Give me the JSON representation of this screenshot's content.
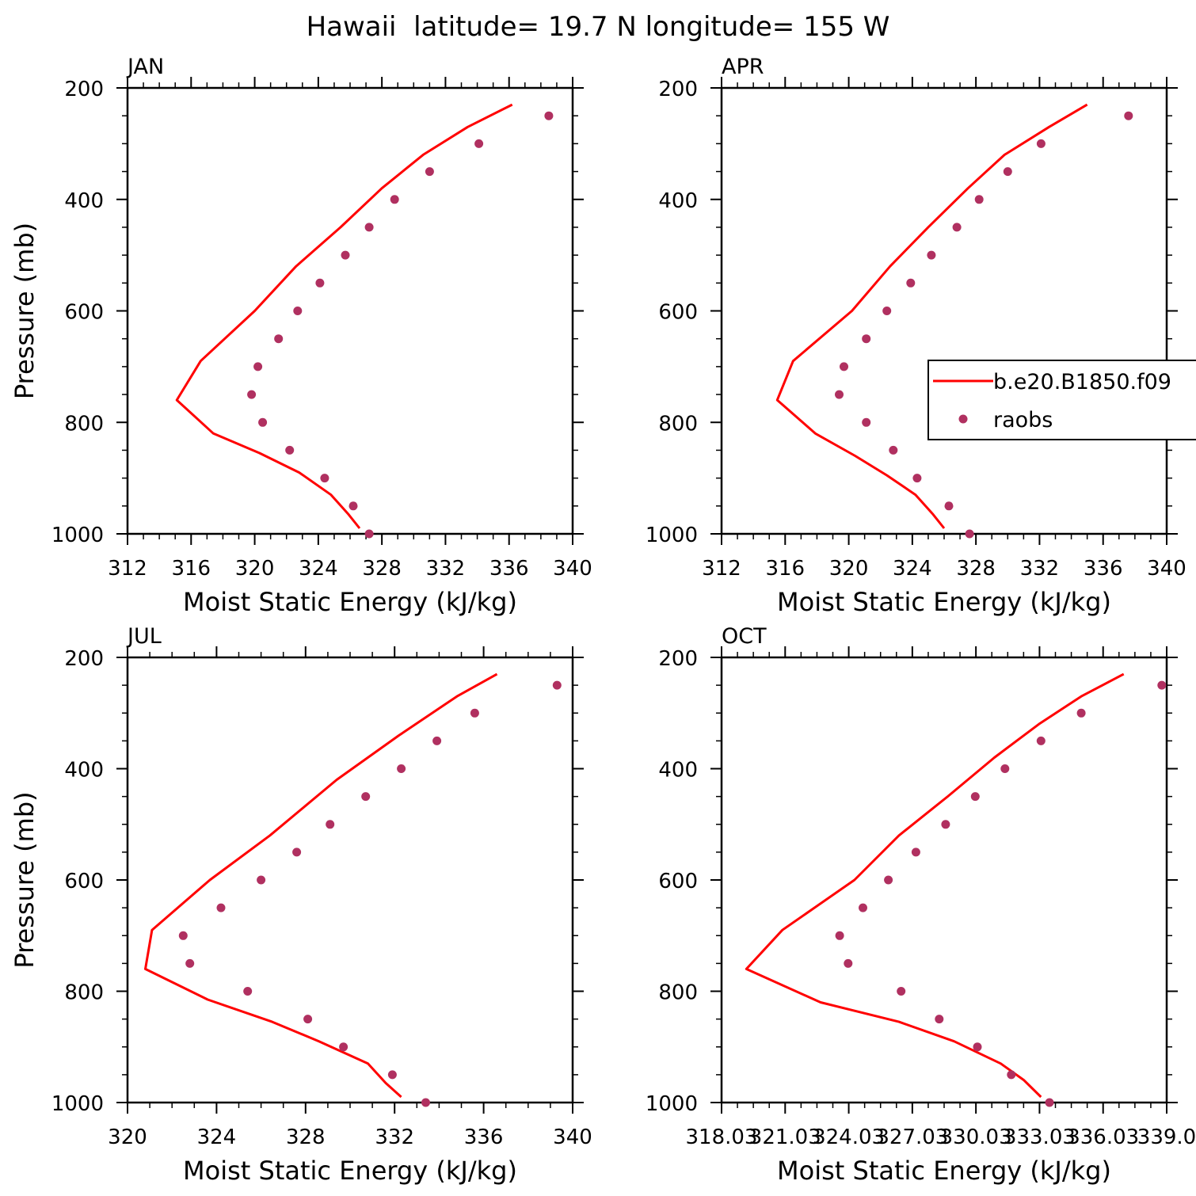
{
  "title": "Hawaii  latitude= 19.7 N longitude= 155 W",
  "colors": {
    "model_line": "#ff0000",
    "obs_marker": "#b03060"
  },
  "legend": {
    "model_label": "b.e20.B1850.f09",
    "obs_label": "raobs",
    "panel": "APR"
  },
  "chart_data": [
    {
      "type": "line",
      "panel_label": "JAN",
      "xlabel": "Moist Static Energy (kJ/kg)",
      "ylabel": "Pressure (mb)",
      "xlim": [
        312,
        340
      ],
      "ylim": [
        1000,
        200
      ],
      "xticks": [
        312,
        316,
        320,
        324,
        328,
        332,
        336,
        340
      ],
      "xtick_labels": [
        "312",
        "316",
        "320",
        "324",
        "328",
        "332",
        "336",
        "340"
      ],
      "yticks": [
        200,
        400,
        600,
        800,
        1000
      ],
      "series": [
        {
          "name": "b.e20.B1850.f09",
          "kind": "line",
          "x": [
            336.2,
            333.4,
            330.6,
            328.0,
            325.4,
            322.6,
            320.0,
            316.6,
            315.1,
            317.4,
            320.3,
            322.8,
            324.8,
            325.9,
            326.6
          ],
          "y": [
            230,
            270,
            320,
            380,
            450,
            520,
            600,
            690,
            760,
            820,
            855,
            890,
            930,
            965,
            990
          ]
        },
        {
          "name": "raobs",
          "kind": "scatter",
          "x": [
            338.5,
            334.1,
            331.0,
            328.8,
            327.2,
            325.7,
            324.1,
            322.7,
            321.5,
            320.2,
            319.8,
            320.5,
            322.2,
            324.4,
            326.2,
            327.2
          ],
          "y": [
            250,
            300,
            350,
            400,
            450,
            500,
            550,
            600,
            650,
            700,
            750,
            800,
            850,
            900,
            950,
            1000
          ]
        }
      ]
    },
    {
      "type": "line",
      "panel_label": "APR",
      "xlabel": "Moist Static Energy (kJ/kg)",
      "ylabel": "",
      "xlim": [
        312,
        340
      ],
      "ylim": [
        1000,
        200
      ],
      "xticks": [
        312,
        316,
        320,
        324,
        328,
        332,
        336,
        340
      ],
      "xtick_labels": [
        "312",
        "316",
        "320",
        "324",
        "328",
        "332",
        "336",
        "340"
      ],
      "yticks": [
        200,
        400,
        600,
        800,
        1000
      ],
      "series": [
        {
          "name": "b.e20.B1850.f09",
          "kind": "line",
          "x": [
            335.0,
            332.6,
            329.8,
            327.5,
            325.0,
            322.6,
            320.2,
            316.5,
            315.5,
            317.9,
            320.4,
            322.4,
            324.2,
            325.3,
            326.0
          ],
          "y": [
            230,
            270,
            320,
            380,
            450,
            520,
            600,
            690,
            760,
            820,
            860,
            895,
            930,
            965,
            990
          ]
        },
        {
          "name": "raobs",
          "kind": "scatter",
          "x": [
            337.6,
            332.1,
            330.0,
            328.2,
            326.8,
            325.2,
            323.9,
            322.4,
            321.1,
            319.7,
            319.4,
            321.1,
            322.8,
            324.3,
            326.3,
            327.6
          ],
          "y": [
            250,
            300,
            350,
            400,
            450,
            500,
            550,
            600,
            650,
            700,
            750,
            800,
            850,
            900,
            950,
            1000
          ]
        }
      ]
    },
    {
      "type": "line",
      "panel_label": "JUL",
      "xlabel": "Moist Static Energy (kJ/kg)",
      "ylabel": "Pressure (mb)",
      "xlim": [
        320,
        340
      ],
      "ylim": [
        1000,
        200
      ],
      "xticks": [
        320,
        324,
        328,
        332,
        336,
        340
      ],
      "xtick_labels": [
        "320",
        "324",
        "328",
        "332",
        "336",
        "340"
      ],
      "yticks": [
        200,
        400,
        600,
        800,
        1000
      ],
      "series": [
        {
          "name": "b.e20.B1850.f09",
          "kind": "line",
          "x": [
            336.6,
            334.8,
            332.2,
            329.4,
            326.4,
            323.7,
            321.1,
            320.8,
            323.6,
            326.5,
            328.6,
            330.8,
            331.6,
            332.3
          ],
          "y": [
            230,
            270,
            340,
            420,
            520,
            600,
            690,
            760,
            815,
            855,
            890,
            930,
            965,
            990
          ]
        },
        {
          "name": "raobs",
          "kind": "scatter",
          "x": [
            339.3,
            335.6,
            333.9,
            332.3,
            330.7,
            329.1,
            327.6,
            326.0,
            324.2,
            322.5,
            322.8,
            325.4,
            328.1,
            329.7,
            331.9,
            333.4
          ],
          "y": [
            250,
            300,
            350,
            400,
            450,
            500,
            550,
            600,
            650,
            700,
            750,
            800,
            850,
            900,
            950,
            1000
          ]
        }
      ]
    },
    {
      "type": "line",
      "panel_label": "OCT",
      "xlabel": "Moist Static Energy (kJ/kg)",
      "ylabel": "",
      "xlim": [
        318.03,
        339.03
      ],
      "ylim": [
        1000,
        200
      ],
      "xticks": [
        318.03,
        321.03,
        324.03,
        327.03,
        330.03,
        333.03,
        336.03,
        339.03
      ],
      "xtick_labels": [
        "318.03",
        "321.03",
        "324.03",
        "327.03",
        "330.03",
        "333.03",
        "336.03",
        "339.0"
      ],
      "yticks": [
        200,
        400,
        600,
        800,
        1000
      ],
      "series": [
        {
          "name": "b.e20.B1850.f09",
          "kind": "line",
          "x": [
            337.0,
            335.0,
            333.0,
            330.9,
            328.7,
            326.4,
            324.3,
            320.9,
            319.2,
            322.7,
            326.4,
            329.0,
            331.2,
            332.3,
            333.1
          ],
          "y": [
            230,
            270,
            320,
            380,
            450,
            520,
            600,
            690,
            760,
            820,
            855,
            890,
            930,
            960,
            990
          ]
        },
        {
          "name": "raobs",
          "kind": "scatter",
          "x": [
            338.8,
            335.0,
            333.1,
            331.4,
            330.0,
            328.6,
            327.2,
            325.9,
            324.7,
            323.6,
            324.0,
            326.5,
            328.3,
            330.1,
            331.7,
            333.5
          ],
          "y": [
            250,
            300,
            350,
            400,
            450,
            500,
            550,
            600,
            650,
            700,
            750,
            800,
            850,
            900,
            950,
            1000
          ]
        }
      ]
    }
  ]
}
